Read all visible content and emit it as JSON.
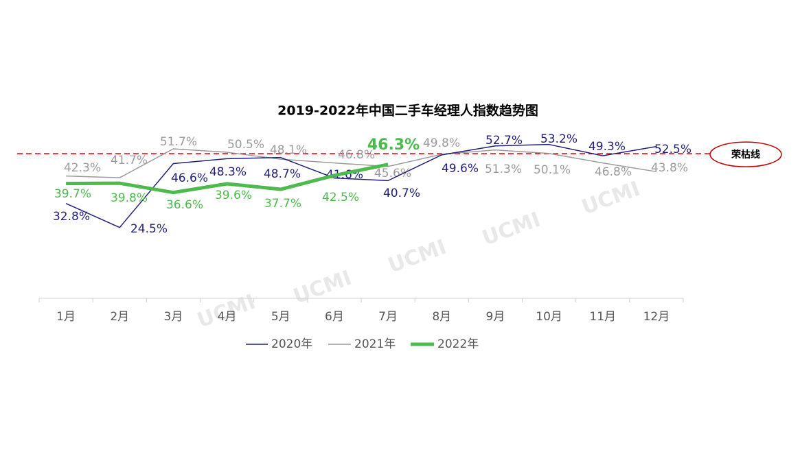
{
  "chart_data": {
    "type": "line",
    "title": "2019-2022年中国二手车经理人指数趋势图",
    "categories": [
      "1月",
      "2月",
      "3月",
      "4月",
      "5月",
      "6月",
      "7月",
      "8月",
      "9月",
      "10月",
      "11月",
      "12月"
    ],
    "ylim": [
      0,
      60
    ],
    "reference_line": {
      "label": "荣枯线",
      "value": 50,
      "color": "#c00000"
    },
    "watermark": "UCMI",
    "series": [
      {
        "name": "2020年",
        "color": "#1f1f7a",
        "values": [
          32.8,
          24.5,
          46.6,
          48.3,
          48.7,
          41.6,
          40.7,
          49.6,
          52.7,
          53.2,
          49.3,
          52.5
        ],
        "value_labels": [
          "32.8%",
          "24.5%",
          "46.6%",
          "48.3%",
          "48.7%",
          "41.6%",
          "40.7%",
          "49.6%",
          "52.7%",
          "53.2%",
          "49.3%",
          "52.5%"
        ]
      },
      {
        "name": "2021年",
        "color": "#9a9a9a",
        "values": [
          42.3,
          41.7,
          51.7,
          50.5,
          48.1,
          46.8,
          45.6,
          49.8,
          51.3,
          50.1,
          46.8,
          43.8
        ],
        "value_labels": [
          "42.3%",
          "41.7%",
          "51.7%",
          "50.5%",
          "48.1%",
          "46.8%",
          "45.6%",
          "49.8%",
          "51.3%",
          "50.1%",
          "46.8%",
          "43.8%"
        ]
      },
      {
        "name": "2022年",
        "color": "#4cba4c",
        "values": [
          39.7,
          39.8,
          36.6,
          39.6,
          37.7,
          42.5,
          46.3,
          null,
          null,
          null,
          null,
          null
        ],
        "value_labels": [
          "39.7%",
          "39.8%",
          "36.6%",
          "39.6%",
          "37.7%",
          "42.5%",
          "46.3%",
          null,
          null,
          null,
          null,
          null
        ]
      }
    ]
  }
}
